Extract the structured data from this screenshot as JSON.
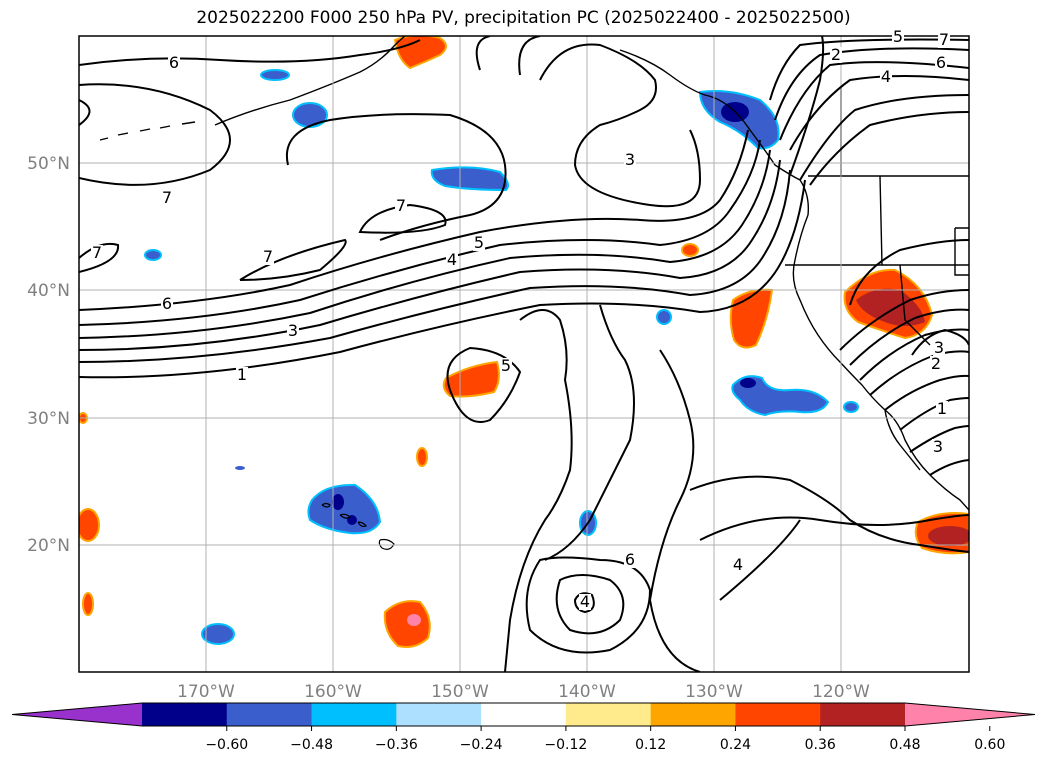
{
  "title": "2025022200 F000 250 hPa PV, precipitation PC (2025022400 - 2025022500)",
  "map": {
    "lat_labels": [
      "50°N",
      "40°N",
      "30°N",
      "20°N"
    ],
    "lon_labels": [
      "170°W",
      "160°W",
      "150°W",
      "140°W",
      "130°W",
      "120°W"
    ],
    "gridlines": true
  },
  "contours": {
    "variable": "250 hPa PV",
    "line_color": "#000000",
    "labels": [
      "6",
      "7",
      "7",
      "7",
      "7",
      "6",
      "5",
      "4",
      "3",
      "1",
      "3",
      "2",
      "4",
      "5",
      "6",
      "7",
      "4",
      "6",
      "5",
      "3",
      "2",
      "1",
      "3",
      "4"
    ]
  },
  "precipitation": {
    "variable": "precipitation PC",
    "colorbar": {
      "ticks": [
        "−0.60",
        "−0.48",
        "−0.36",
        "−0.24",
        "−0.12",
        "0.12",
        "0.24",
        "0.36",
        "0.48",
        "0.60"
      ],
      "colors": [
        "#9932CC",
        "#00008B",
        "#3A5FCD",
        "#00BFFF",
        "#ADDFFF",
        "#FFFFFF",
        "#FFEB8C",
        "#FFA500",
        "#FF4500",
        "#B22222",
        "#FF82AB"
      ]
    }
  }
}
